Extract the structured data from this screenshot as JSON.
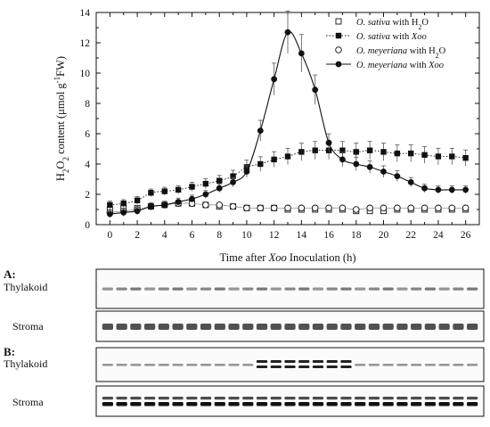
{
  "chart_data": {
    "type": "line",
    "xlabel_parts": [
      "Time after ",
      "Xoo",
      " Inoculation (h)"
    ],
    "ylabel_parts": [
      "H",
      "2",
      "O",
      "2",
      " content (μmol g",
      "-1",
      "FW)"
    ],
    "xlim": [
      -1,
      27
    ],
    "ylim": [
      0,
      14
    ],
    "x_ticks": [
      0,
      2,
      4,
      6,
      8,
      10,
      12,
      14,
      16,
      18,
      20,
      22,
      24,
      26
    ],
    "y_ticks": [
      0,
      2,
      4,
      6,
      8,
      10,
      12,
      14
    ],
    "x": [
      0,
      1,
      2,
      3,
      4,
      5,
      6,
      7,
      8,
      9,
      10,
      11,
      12,
      13,
      14,
      15,
      16,
      17,
      18,
      19,
      20,
      21,
      22,
      23,
      24,
      25,
      26
    ],
    "legend_position": "top-right",
    "series": [
      {
        "legend_parts": [
          [
            "O. sativa",
            "italic"
          ],
          [
            " with H",
            "normal"
          ],
          [
            "2",
            "sub"
          ],
          [
            "O",
            "normal"
          ]
        ],
        "marker": "open-square",
        "line": "none",
        "values": [
          1.0,
          1.1,
          1.1,
          1.2,
          1.3,
          1.4,
          1.4,
          1.3,
          1.2,
          1.2,
          1.1,
          1.1,
          1.1,
          1.0,
          1.0,
          1.0,
          1.0,
          1.0,
          0.9,
          0.9,
          0.9,
          1.0,
          1.0,
          1.0,
          1.0,
          1.0,
          1.0
        ]
      },
      {
        "legend_parts": [
          [
            "O. sativa",
            "italic"
          ],
          [
            " with ",
            "normal"
          ],
          [
            "Xoo",
            "italic"
          ]
        ],
        "marker": "filled-square",
        "line": "dotted",
        "values": [
          1.3,
          1.4,
          1.6,
          2.1,
          2.2,
          2.3,
          2.5,
          2.7,
          2.9,
          3.2,
          3.8,
          4.0,
          4.3,
          4.5,
          4.8,
          4.9,
          4.9,
          4.9,
          4.8,
          4.9,
          4.8,
          4.7,
          4.7,
          4.6,
          4.5,
          4.5,
          4.4
        ]
      },
      {
        "legend_parts": [
          [
            "O. meyeriana",
            "italic"
          ],
          [
            " with H",
            "normal"
          ],
          [
            "2",
            "sub"
          ],
          [
            "O",
            "normal"
          ]
        ],
        "marker": "open-circle",
        "line": "thin",
        "values": [
          0.8,
          0.9,
          1.0,
          1.2,
          1.3,
          1.4,
          1.4,
          1.3,
          1.3,
          1.2,
          1.1,
          1.1,
          1.1,
          1.1,
          1.1,
          1.1,
          1.1,
          1.1,
          1.0,
          1.1,
          1.1,
          1.1,
          1.1,
          1.1,
          1.1,
          1.1,
          1.1
        ]
      },
      {
        "legend_parts": [
          [
            "O. meyeriana",
            "italic"
          ],
          [
            " with ",
            "normal"
          ],
          [
            "Xoo",
            "italic"
          ]
        ],
        "marker": "filled-circle",
        "line": "solid",
        "values": [
          0.7,
          0.8,
          0.9,
          1.2,
          1.3,
          1.5,
          1.7,
          2.0,
          2.4,
          2.8,
          3.5,
          6.2,
          9.6,
          12.7,
          11.3,
          8.9,
          5.4,
          4.3,
          4.0,
          3.8,
          3.5,
          3.2,
          2.8,
          2.4,
          2.3,
          2.3,
          2.3
        ]
      }
    ]
  },
  "blots": {
    "panel_a": {
      "label": "A:",
      "rows": [
        {
          "label": "Thylakoid",
          "lanes": 27,
          "bands": "faint-single"
        },
        {
          "label": "Stroma",
          "lanes": 27,
          "bands": "dark-single"
        }
      ]
    },
    "panel_b": {
      "label": "B:",
      "rows": [
        {
          "label": "Thylakoid",
          "lanes": 27,
          "bands": "faint-single-with-induced-doublet",
          "doublet_lanes": [
            11,
            12,
            13,
            14,
            15,
            16,
            17
          ]
        },
        {
          "label": "Stroma",
          "lanes": 27,
          "bands": "dark-doublet"
        }
      ]
    }
  }
}
